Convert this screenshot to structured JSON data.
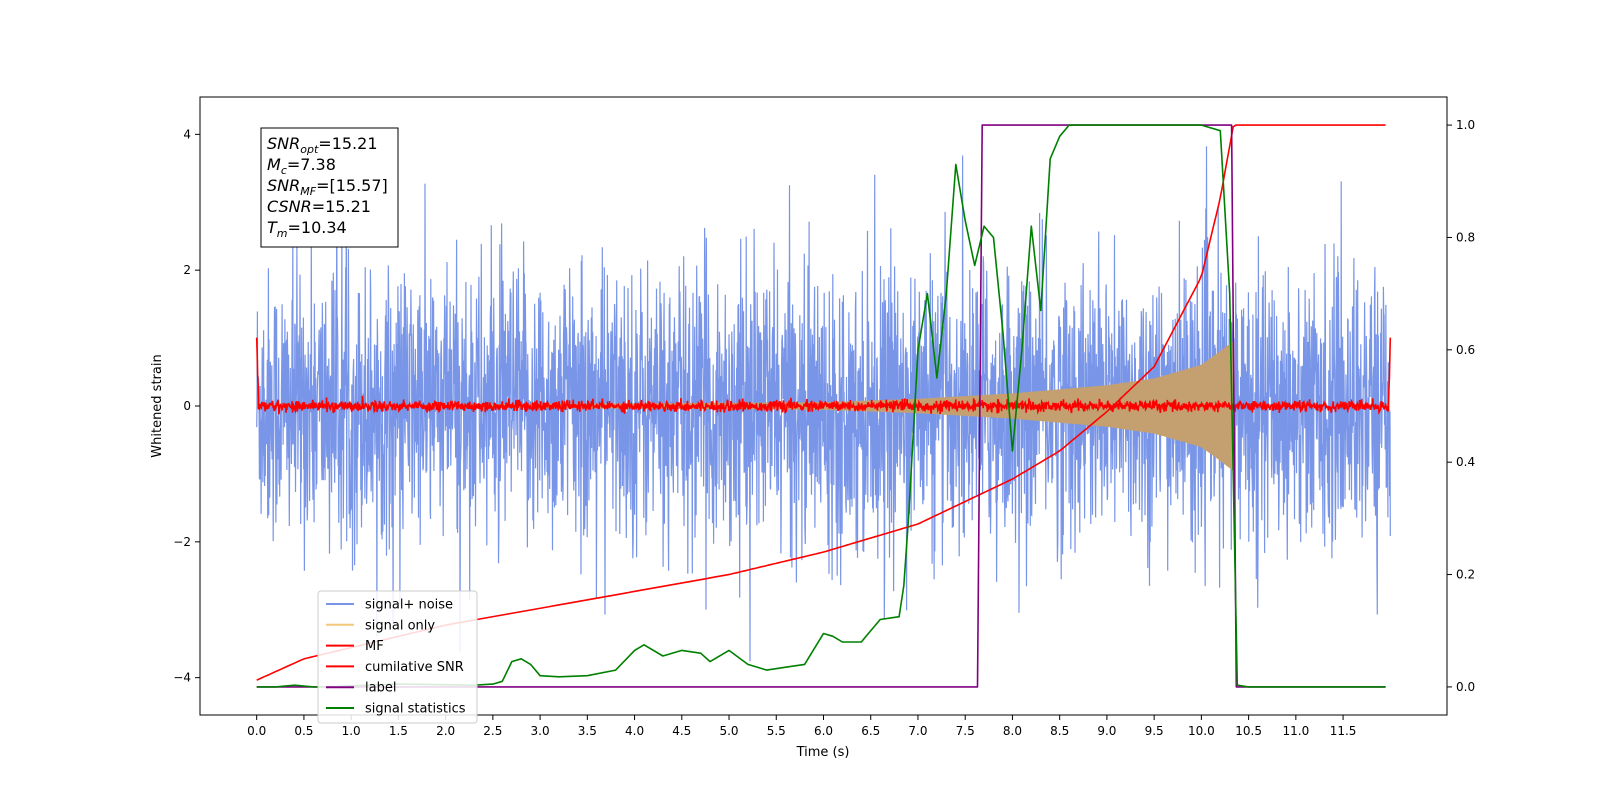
{
  "chart_data": {
    "type": "line",
    "xlabel": "Time (s)",
    "ylabel": "Whitened strain",
    "xlim": [
      -0.6,
      12.6
    ],
    "ylim_left": [
      -4.55,
      4.55
    ],
    "ylim_right": [
      -0.05,
      1.05
    ],
    "xticks": [
      0.0,
      0.5,
      1.0,
      1.5,
      2.0,
      2.5,
      3.0,
      3.5,
      4.0,
      4.5,
      5.0,
      5.5,
      6.0,
      6.5,
      7.0,
      7.5,
      8.0,
      8.5,
      9.0,
      9.5,
      10.0,
      10.5,
      11.0,
      11.5
    ],
    "xtick_labels": [
      "0.0",
      "0.5",
      "1.0",
      "1.5",
      "2.0",
      "2.5",
      "3.0",
      "3.5",
      "4.0",
      "4.5",
      "5.0",
      "5.5",
      "6.0",
      "6.5",
      "7.0",
      "7.5",
      "8.0",
      "8.5",
      "9.0",
      "9.5",
      "10.0",
      "10.5",
      "11.0",
      "11.5"
    ],
    "yticks_left": [
      -4,
      -2,
      0,
      2,
      4
    ],
    "ytick_labels_left": [
      "−4",
      "−2",
      "0",
      "2",
      "4"
    ],
    "yticks_right": [
      0.0,
      0.2,
      0.4,
      0.6,
      0.8,
      1.0
    ],
    "ytick_labels_right": [
      "0.0",
      "0.2",
      "0.4",
      "0.6",
      "0.8",
      "1.0"
    ],
    "legend_position": "lower-left",
    "grid": false,
    "annotation": {
      "lines": [
        {
          "main": "SNR",
          "sub": "opt",
          "value": "=15.21"
        },
        {
          "main": "M",
          "sub": "c",
          "value": "=7.38"
        },
        {
          "main": "SNR",
          "sub": "MF",
          "value": "=[15.57]"
        },
        {
          "main": "CSNR",
          "sub": "",
          "value": "=15.21"
        },
        {
          "main": "T",
          "sub": "m",
          "value": "=10.34"
        }
      ]
    },
    "series": [
      {
        "name": "signal+ noise",
        "color": "#7895e8",
        "axis": "left",
        "x_range": [
          0.0,
          12.0
        ],
        "noise_std": 1.0,
        "approx_min": -4.1,
        "approx_max": 4.1
      },
      {
        "name": "signal only",
        "color": "#f5c77a",
        "axis": "left",
        "x_range": [
          0.0,
          10.34
        ],
        "envelope": {
          "x": [
            0.0,
            6.0,
            7.0,
            8.0,
            9.0,
            9.5,
            10.0,
            10.2,
            10.34
          ],
          "amplitude": [
            0.0,
            0.05,
            0.1,
            0.18,
            0.3,
            0.4,
            0.6,
            0.8,
            0.95
          ]
        }
      },
      {
        "name": "MF",
        "color": "#ff0000",
        "axis": "left",
        "x_range": [
          0.0,
          12.0
        ],
        "start_value": 1.0,
        "end_value": 0.9,
        "noise_std": 0.04
      },
      {
        "name": "cumilative SNR",
        "color": "#ff0000",
        "axis": "right",
        "x": [
          0.0,
          0.5,
          1.0,
          2.0,
          3.0,
          4.0,
          5.0,
          6.0,
          7.0,
          7.5,
          8.0,
          8.5,
          9.0,
          9.5,
          10.0,
          10.2,
          10.34,
          11.95
        ],
        "y": [
          0.012,
          0.05,
          0.07,
          0.11,
          0.14,
          0.17,
          0.2,
          0.24,
          0.29,
          0.33,
          0.37,
          0.42,
          0.49,
          0.57,
          0.73,
          0.87,
          1.0,
          1.0
        ]
      },
      {
        "name": "label",
        "color": "#800080",
        "axis": "right",
        "x": [
          0.0,
          7.63,
          7.68,
          10.32,
          10.37,
          11.95
        ],
        "y": [
          0.0,
          0.0,
          1.0,
          1.0,
          0.0,
          0.0
        ]
      },
      {
        "name": "signal statistics",
        "color": "#008000",
        "axis": "right",
        "x": [
          0.0,
          0.2,
          0.4,
          0.6,
          0.8,
          1.0,
          1.5,
          2.0,
          2.3,
          2.5,
          2.6,
          2.7,
          2.8,
          2.9,
          3.0,
          3.2,
          3.5,
          3.8,
          4.0,
          4.1,
          4.3,
          4.5,
          4.7,
          4.8,
          5.0,
          5.2,
          5.4,
          5.6,
          5.8,
          6.0,
          6.1,
          6.2,
          6.4,
          6.5,
          6.6,
          6.8,
          6.85,
          6.9,
          7.0,
          7.1,
          7.2,
          7.3,
          7.4,
          7.5,
          7.6,
          7.7,
          7.8,
          7.9,
          8.0,
          8.1,
          8.2,
          8.3,
          8.4,
          8.5,
          8.6,
          8.8,
          9.0,
          9.5,
          10.0,
          10.2,
          10.3,
          10.38,
          10.5,
          11.0,
          11.95
        ],
        "y": [
          0.0,
          0.0,
          0.003,
          0.0,
          0.0,
          0.002,
          0.005,
          0.004,
          0.003,
          0.005,
          0.01,
          0.045,
          0.05,
          0.04,
          0.02,
          0.018,
          0.02,
          0.03,
          0.065,
          0.075,
          0.055,
          0.065,
          0.06,
          0.045,
          0.065,
          0.04,
          0.03,
          0.035,
          0.04,
          0.095,
          0.09,
          0.08,
          0.08,
          0.1,
          0.12,
          0.125,
          0.18,
          0.3,
          0.6,
          0.7,
          0.55,
          0.7,
          0.93,
          0.83,
          0.75,
          0.82,
          0.8,
          0.63,
          0.42,
          0.6,
          0.82,
          0.67,
          0.94,
          0.98,
          1.0,
          1.0,
          1.0,
          1.0,
          1.0,
          0.99,
          0.7,
          0.003,
          0.0,
          0.0,
          0.0
        ]
      }
    ]
  }
}
